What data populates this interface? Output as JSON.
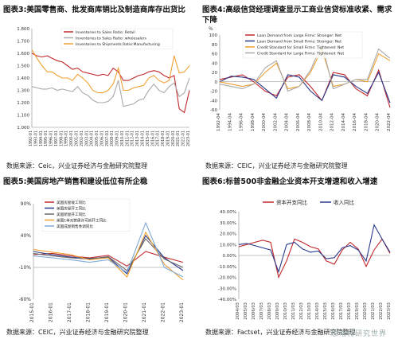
{
  "panels": [
    {
      "fig_label": "图表3:",
      "title": "美国零售商、批发商库销比及制造商库存出货比",
      "source": "数据来源：Ceic，兴业证券经济与金融研究院整理"
    },
    {
      "fig_label": "图表4:",
      "title": "高级信贷经理调查显示工商业信贷标准收紧、需求下降",
      "source": "数据来源：CEIC，兴业证券经济与金融研究院整理"
    },
    {
      "fig_label": "图表5:",
      "title": "美国房地产销售和建设低位有所企稳",
      "source": "数据来源：CEIC，兴业证券经济与金融研究院整理"
    },
    {
      "fig_label": "图表6:",
      "title": "标普500非金融企业资本开支增速和收入增速",
      "source": "数据来源：Factset，兴业证券经济与金融研究院整理"
    }
  ],
  "watermark": "思略特研究世界",
  "chart_data": [
    {
      "type": "line",
      "yticks": [
        "1.800",
        "1.700",
        "1.600",
        "1.500",
        "1.400",
        "1.300",
        "1.200",
        "1.100",
        "1.000"
      ],
      "ylim": [
        1.0,
        1.8
      ],
      "xticks": [
        "1992-01",
        "1993-01",
        "1994-01",
        "1995-01",
        "1996-01",
        "1997-01",
        "1998-01",
        "1999-01",
        "2000-01",
        "2001-01",
        "2002-01",
        "2003-01",
        "2004-01",
        "2005-01",
        "2006-01",
        "2007-01",
        "2008-01",
        "2009-01",
        "2010-01",
        "2011-01",
        "2012-01",
        "2013-01",
        "2014-01",
        "2015-01",
        "2016-01",
        "2017-01",
        "2018-01",
        "2019-01",
        "2020-01",
        "2021-01",
        "2022-01",
        "2023-01"
      ],
      "legend": "top-center",
      "series": [
        {
          "name": "Inventories to Sales Ratio: Retail",
          "color": "#c0282d",
          "values": [
            1.6,
            1.58,
            1.57,
            1.58,
            1.56,
            1.54,
            1.53,
            1.5,
            1.47,
            1.48,
            1.45,
            1.44,
            1.43,
            1.42,
            1.43,
            1.42,
            1.48,
            1.45,
            1.38,
            1.38,
            1.4,
            1.42,
            1.43,
            1.45,
            1.46,
            1.45,
            1.42,
            1.4,
            1.42,
            1.15,
            1.12,
            1.3
          ]
        },
        {
          "name": "Inventories to Sales Ratio: wholesalers",
          "color": "#a9a9a9",
          "values": [
            1.33,
            1.32,
            1.31,
            1.31,
            1.32,
            1.3,
            1.31,
            1.3,
            1.29,
            1.33,
            1.28,
            1.26,
            1.22,
            1.2,
            1.2,
            1.21,
            1.25,
            1.38,
            1.17,
            1.18,
            1.19,
            1.22,
            1.23,
            1.3,
            1.35,
            1.3,
            1.28,
            1.33,
            1.36,
            1.25,
            1.28,
            1.4
          ]
        },
        {
          "name": "Inventories to Shipments Ratio:Manufacturing",
          "color": "#f0a030",
          "values": [
            1.63,
            1.56,
            1.5,
            1.45,
            1.45,
            1.42,
            1.4,
            1.4,
            1.38,
            1.43,
            1.4,
            1.36,
            1.3,
            1.28,
            1.28,
            1.3,
            1.35,
            1.48,
            1.3,
            1.3,
            1.32,
            1.33,
            1.34,
            1.4,
            1.42,
            1.38,
            1.36,
            1.38,
            1.58,
            1.44,
            1.45,
            1.5
          ]
        }
      ]
    },
    {
      "type": "line",
      "y_axis_label": "%",
      "yticks": [
        "100",
        "80",
        "60",
        "40",
        "20",
        "0",
        "-20",
        "-40",
        "-60"
      ],
      "ylim": [
        -60,
        100
      ],
      "xticks": [
        "1992-04",
        "1994-04",
        "1996-04",
        "1998-04",
        "2000-04",
        "2002-04",
        "2004-04",
        "2006-04",
        "2008-04",
        "2010-04",
        "2012-04",
        "2014-04",
        "2016-04",
        "2018-04",
        "2020-04",
        "2022-04"
      ],
      "legend": "top-left",
      "series": [
        {
          "name": "Loan Demand from Large Firms: Stronger: Net",
          "color": "#c0282d",
          "values": [
            5,
            10,
            15,
            0,
            -20,
            -30,
            10,
            15,
            -10,
            -40,
            20,
            15,
            -15,
            -30,
            25,
            -55
          ]
        },
        {
          "name": "Loan Demand from Small Firms: Stronger: Net",
          "color": "#2a3a8c",
          "values": [
            0,
            12,
            10,
            5,
            -15,
            -35,
            15,
            10,
            -20,
            -40,
            15,
            10,
            -10,
            -25,
            20,
            -45
          ]
        },
        {
          "name": "Credit Standard for Small Firms: Tightened: Net",
          "color": "#f0a030",
          "values": [
            0,
            -5,
            -10,
            -5,
            20,
            40,
            -15,
            -10,
            20,
            70,
            -10,
            -5,
            5,
            0,
            60,
            45
          ]
        },
        {
          "name": "Credit Standard for Large Firms: Tightened: Net",
          "color": "#a9a9a9",
          "values": [
            -5,
            -10,
            -15,
            -5,
            30,
            45,
            -20,
            -10,
            25,
            80,
            -15,
            -5,
            5,
            5,
            70,
            50
          ]
        }
      ]
    },
    {
      "type": "line",
      "yticks": [
        "90%",
        "40%",
        "-10%",
        "-60%"
      ],
      "ylim": [
        -60,
        90
      ],
      "xticks": [
        "2015-01",
        "2016-01",
        "2017-01",
        "2018-01",
        "2019-01",
        "2020-01",
        "2021-01",
        "2022-01",
        "2023-01"
      ],
      "legend": "top-left",
      "series": [
        {
          "name": "美国房屋竣工同比",
          "color": "#c0282d",
          "values": [
            10,
            12,
            8,
            5,
            9,
            -8,
            15,
            6,
            -2
          ]
        },
        {
          "name": "美国房屋开工同比",
          "color": "#2a3a8c",
          "values": [
            15,
            10,
            6,
            4,
            6,
            -20,
            40,
            5,
            -15
          ]
        },
        {
          "name": "美国新屋开工同比",
          "color": "#6a6a6a",
          "values": [
            12,
            8,
            5,
            3,
            7,
            -15,
            35,
            3,
            -10
          ]
        },
        {
          "name": "美国1单元营建许可新开工同比",
          "color": "#f0a030",
          "values": [
            18,
            14,
            10,
            2,
            5,
            -25,
            45,
            -5,
            -30
          ]
        },
        {
          "name": "美国成屋销售季调同比",
          "color": "#7fa9d6",
          "values": [
            8,
            5,
            2,
            -2,
            2,
            -18,
            60,
            -10,
            -25
          ]
        }
      ]
    },
    {
      "type": "line",
      "yticks": [
        "40.00%",
        "30.00%",
        "20.00%",
        "10.00%",
        "0.00%",
        "-10.00%",
        "-20.00%",
        "-30.00%",
        "-40.00%"
      ],
      "ylim": [
        -40,
        40
      ],
      "xticks": [
        "2004/03",
        "2005/03",
        "2006/03",
        "2007/03",
        "2008/03",
        "2009/03",
        "2010/03",
        "2011/03",
        "2012/03",
        "2013/03",
        "2014/03",
        "2015/03",
        "2016/03",
        "2017/03",
        "2018/03",
        "2019/03",
        "2020/03",
        "2021/03",
        "2022/03",
        "2023/03"
      ],
      "legend": "top-center",
      "series": [
        {
          "name": "资本开支同比",
          "color": "#c0282d",
          "values": [
            8,
            10,
            12,
            14,
            12,
            -20,
            -5,
            15,
            12,
            8,
            6,
            -5,
            -8,
            5,
            12,
            6,
            -10,
            5,
            15,
            2
          ]
        },
        {
          "name": "收入同比",
          "color": "#2a3a8c",
          "values": [
            10,
            11,
            9,
            7,
            5,
            -15,
            10,
            12,
            6,
            3,
            4,
            -3,
            -2,
            7,
            9,
            5,
            -5,
            28,
            15,
            3
          ]
        }
      ]
    }
  ]
}
